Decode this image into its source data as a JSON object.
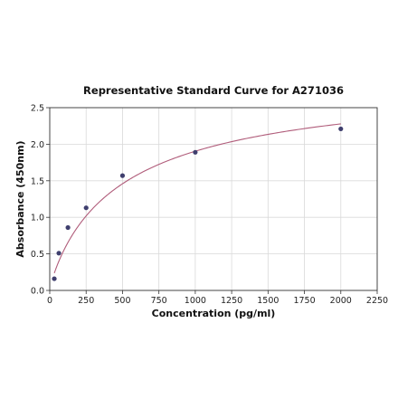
{
  "chart_data": {
    "type": "scatter",
    "title": "Representative Standard Curve for A271036",
    "xlabel": "Concentration (pg/ml)",
    "ylabel": "Absorbance (450nm)",
    "xlim": [
      0,
      2250
    ],
    "ylim": [
      0,
      2.5
    ],
    "xticks": [
      "0",
      "250",
      "500",
      "750",
      "1000",
      "1250",
      "1500",
      "1750",
      "2000",
      "2250"
    ],
    "yticks": [
      "0.0",
      "0.5",
      "1.0",
      "1.5",
      "2.0",
      "2.5"
    ],
    "grid": true,
    "points": {
      "x": [
        31.25,
        62.5,
        125,
        250,
        500,
        1000,
        2000
      ],
      "y": [
        0.16,
        0.51,
        0.86,
        1.13,
        1.57,
        1.89,
        2.21
      ]
    },
    "fit": {
      "type": "4PL",
      "a": 0.02,
      "b": 0.9,
      "c": 520,
      "d": 2.95
    },
    "colors": {
      "curve": "#b05c7a",
      "points": "#3f3f6e"
    }
  }
}
